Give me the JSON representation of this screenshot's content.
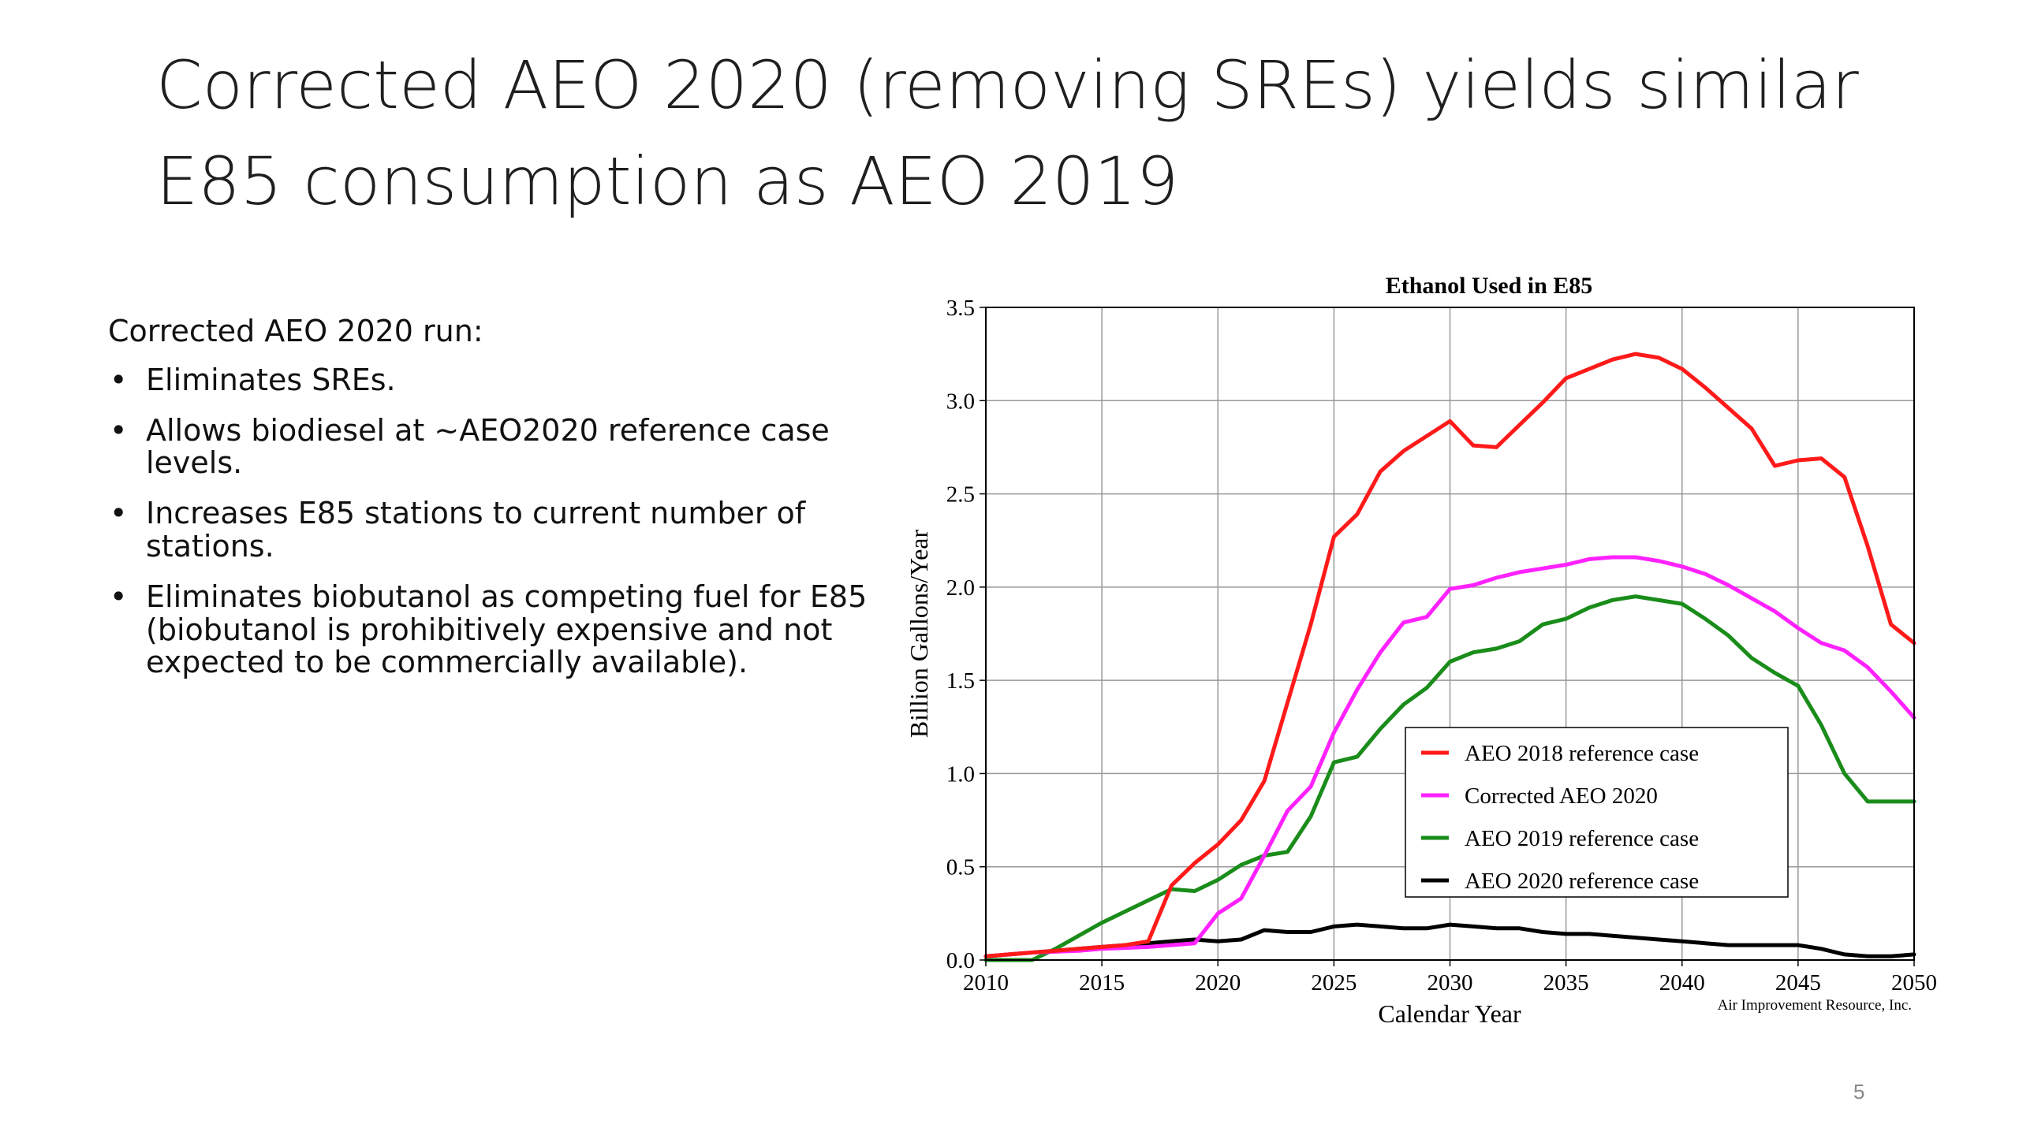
{
  "slide": {
    "title_lines": [
      "Corrected AEO 2020 (removing SREs) yields similar",
      "E85 consumption as AEO 2019"
    ],
    "run_heading": "Corrected AEO 2020 run:",
    "bullets": [
      "Eliminates SREs.",
      "Allows biodiesel at ~AEO2020 reference case levels.",
      "Increases E85 stations to current number of stations.",
      "Eliminates biobutanol as competing fuel for E85 (biobutanol is prohibitively expensive and not expected to be commercially available)."
    ],
    "bullet_symbol": "•",
    "page_number": "5"
  },
  "chart_data": {
    "type": "line",
    "title": "Ethanol Used in E85",
    "xlabel": "Calendar Year",
    "ylabel": "Billion Gallons/Year",
    "credit": "Air Improvement Resource, Inc.",
    "xlim": [
      2010,
      2050
    ],
    "ylim": [
      0,
      3.5
    ],
    "xticks": [
      2010,
      2015,
      2020,
      2025,
      2030,
      2035,
      2040,
      2045,
      2050
    ],
    "yticks": [
      0.0,
      0.5,
      1.0,
      1.5,
      2.0,
      2.5,
      3.0,
      3.5
    ],
    "grid": true,
    "legend_position": "lower-right",
    "x": [
      2010,
      2011,
      2012,
      2013,
      2014,
      2015,
      2016,
      2017,
      2018,
      2019,
      2020,
      2021,
      2022,
      2023,
      2024,
      2025,
      2026,
      2027,
      2028,
      2029,
      2030,
      2031,
      2032,
      2033,
      2034,
      2035,
      2036,
      2037,
      2038,
      2039,
      2040,
      2041,
      2042,
      2043,
      2044,
      2045,
      2046,
      2047,
      2048,
      2049,
      2050
    ],
    "series": [
      {
        "name": "AEO 2018 reference case",
        "color": "#ff1a1a",
        "values": [
          0.02,
          0.03,
          0.04,
          0.05,
          0.06,
          0.07,
          0.08,
          0.1,
          0.4,
          0.52,
          0.62,
          0.75,
          0.96,
          1.38,
          1.8,
          2.27,
          2.39,
          2.62,
          2.73,
          2.81,
          2.89,
          2.76,
          2.75,
          2.87,
          2.99,
          3.12,
          3.17,
          3.22,
          3.25,
          3.23,
          3.17,
          3.07,
          2.96,
          2.85,
          2.65,
          2.68,
          2.69,
          2.59,
          2.22,
          1.8,
          1.7
        ]
      },
      {
        "name": "Corrected AEO 2020",
        "color": "#ff22ff",
        "values": [
          0.02,
          0.03,
          0.04,
          0.045,
          0.05,
          0.06,
          0.065,
          0.07,
          0.08,
          0.09,
          0.25,
          0.33,
          0.56,
          0.8,
          0.93,
          1.22,
          1.45,
          1.65,
          1.81,
          1.84,
          1.99,
          2.01,
          2.05,
          2.08,
          2.1,
          2.12,
          2.15,
          2.16,
          2.16,
          2.14,
          2.11,
          2.07,
          2.01,
          1.94,
          1.87,
          1.78,
          1.7,
          1.66,
          1.57,
          1.44,
          1.3
        ]
      },
      {
        "name": "AEO 2019 reference case",
        "color": "#1a8c1a",
        "values": [
          0.0,
          0.0,
          0.0,
          0.06,
          0.13,
          0.2,
          0.26,
          0.32,
          0.38,
          0.37,
          0.43,
          0.51,
          0.56,
          0.58,
          0.77,
          1.06,
          1.09,
          1.24,
          1.37,
          1.46,
          1.6,
          1.65,
          1.67,
          1.71,
          1.8,
          1.83,
          1.89,
          1.93,
          1.95,
          1.93,
          1.91,
          1.83,
          1.74,
          1.62,
          1.54,
          1.47,
          1.26,
          1.0,
          0.85,
          0.85,
          0.85
        ]
      },
      {
        "name": "AEO 2020 reference case",
        "color": "#000000",
        "values": [
          0.02,
          0.03,
          0.04,
          0.05,
          0.06,
          0.07,
          0.08,
          0.09,
          0.1,
          0.11,
          0.1,
          0.11,
          0.16,
          0.15,
          0.15,
          0.18,
          0.19,
          0.18,
          0.17,
          0.17,
          0.19,
          0.18,
          0.17,
          0.17,
          0.15,
          0.14,
          0.14,
          0.13,
          0.12,
          0.11,
          0.1,
          0.09,
          0.08,
          0.08,
          0.08,
          0.08,
          0.06,
          0.03,
          0.02,
          0.02,
          0.03
        ]
      }
    ]
  }
}
